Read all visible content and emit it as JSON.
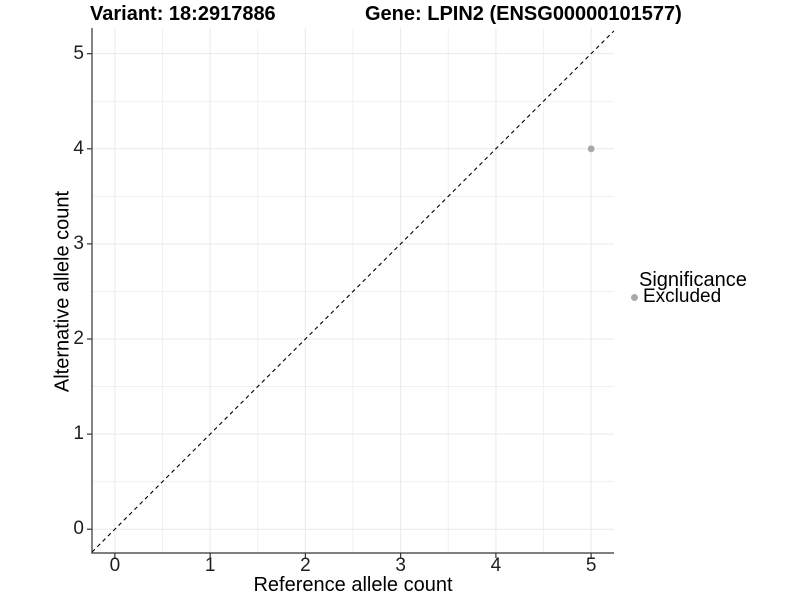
{
  "chart_data": {
    "type": "scatter",
    "titles": {
      "left": "Variant: 18:2917886",
      "right": "Gene: LPIN2 (ENSG00000101577)"
    },
    "xlabel": "Reference allele count",
    "ylabel": "Alternative allele count",
    "xlim": [
      -0.24,
      5.24
    ],
    "ylim": [
      -0.25,
      5.27
    ],
    "x_ticks": [
      0,
      1,
      2,
      3,
      4,
      5
    ],
    "y_ticks": [
      0,
      1,
      2,
      3,
      4,
      5
    ],
    "x_minor_ticks": [
      0.5,
      1.5,
      2.5,
      3.5,
      4.5
    ],
    "y_minor_ticks": [
      0.5,
      1.5,
      2.5,
      3.5,
      4.5
    ],
    "grid": true,
    "series": [
      {
        "name": "Excluded",
        "color": "#a9a9a9",
        "marker": "circle",
        "points": [
          {
            "x": 5,
            "y": 4
          }
        ]
      }
    ],
    "reference_line": {
      "type": "identity",
      "equation": "y = x",
      "style": "dashed",
      "color": "#000000"
    },
    "legend": {
      "title": "Significance",
      "position": "right",
      "items": [
        {
          "label": "Excluded",
          "color": "#a9a9a9",
          "marker": "circle"
        }
      ]
    }
  },
  "colors": {
    "background": "#ffffff",
    "grid_major": "#e9e9e9",
    "grid_minor": "#f1f1f1",
    "axis_line": "#333333",
    "tick_mark": "#333333",
    "tick_text": "#1f1f1f",
    "title_text": "#000000",
    "point": "#a9a9a9"
  }
}
